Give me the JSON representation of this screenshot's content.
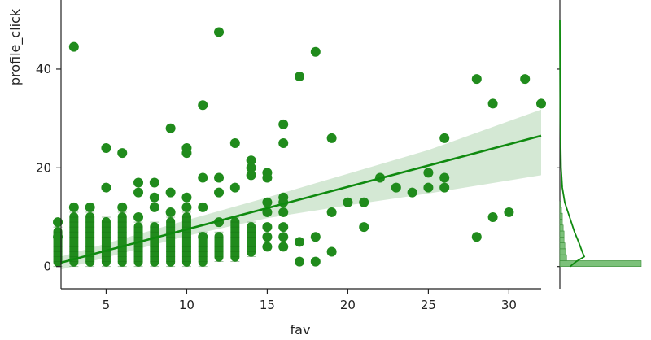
{
  "chart_data": {
    "type": "scatter",
    "xlabel": "fav",
    "ylabel": "profile_click",
    "xlim": [
      2.2,
      32.0
    ],
    "ylim": [
      -4.5,
      54.0
    ],
    "xticks": [
      5,
      10,
      15,
      20,
      25,
      30
    ],
    "yticks": [
      0,
      20,
      40
    ],
    "grid": false,
    "point_color": "#208b1c",
    "line_color": "#0f8a0f",
    "band_color": "#cfe5cf",
    "points": [
      [
        3,
        44.5
      ],
      [
        12,
        47.5
      ],
      [
        18,
        43.5
      ],
      [
        17,
        38.5
      ],
      [
        11,
        32.7
      ],
      [
        9,
        28
      ],
      [
        16,
        28.8
      ],
      [
        13,
        25
      ],
      [
        10,
        24
      ],
      [
        10,
        23
      ],
      [
        5,
        24
      ],
      [
        6,
        23
      ],
      [
        14,
        21.5
      ],
      [
        14,
        20
      ],
      [
        15,
        19
      ],
      [
        14,
        18.5
      ],
      [
        15,
        18
      ],
      [
        11,
        18
      ],
      [
        12,
        18
      ],
      [
        16,
        25
      ],
      [
        19,
        26
      ],
      [
        22,
        18
      ],
      [
        23,
        16
      ],
      [
        24,
        15
      ],
      [
        25,
        16
      ],
      [
        25,
        19
      ],
      [
        26,
        18
      ],
      [
        26,
        16
      ],
      [
        26,
        26
      ],
      [
        28,
        38
      ],
      [
        29,
        33
      ],
      [
        31,
        38
      ],
      [
        32,
        33
      ],
      [
        28,
        6
      ],
      [
        29,
        10
      ],
      [
        30,
        11
      ],
      [
        20,
        13
      ],
      [
        21,
        13
      ],
      [
        21,
        8
      ],
      [
        19,
        11
      ],
      [
        19,
        3
      ],
      [
        18,
        6
      ],
      [
        17,
        5
      ],
      [
        17,
        1
      ],
      [
        18,
        1
      ],
      [
        16,
        4
      ],
      [
        16,
        6
      ],
      [
        16,
        8
      ],
      [
        16,
        11
      ],
      [
        16,
        13
      ],
      [
        16,
        14
      ],
      [
        15,
        13
      ],
      [
        15,
        6
      ],
      [
        15,
        8
      ],
      [
        15,
        4
      ],
      [
        15,
        11
      ],
      [
        13,
        16
      ],
      [
        12,
        15
      ],
      [
        12,
        9
      ],
      [
        11,
        12
      ],
      [
        11,
        6
      ],
      [
        9,
        15
      ],
      [
        9,
        11
      ],
      [
        8,
        14
      ],
      [
        8,
        12
      ],
      [
        8,
        17
      ],
      [
        7,
        17
      ],
      [
        7,
        15
      ],
      [
        7,
        10
      ],
      [
        6,
        12
      ],
      [
        5,
        16
      ],
      [
        4,
        12
      ],
      [
        3,
        12
      ],
      [
        2,
        9
      ],
      [
        2,
        6
      ],
      [
        10,
        14
      ],
      [
        10,
        12
      ]
    ],
    "columns": [
      {
        "x": 2,
        "ymin": 0,
        "ymax": 8
      },
      {
        "x": 3,
        "ymin": 0,
        "ymax": 11
      },
      {
        "x": 4,
        "ymin": 0,
        "ymax": 11
      },
      {
        "x": 5,
        "ymin": 0,
        "ymax": 10
      },
      {
        "x": 6,
        "ymin": 0,
        "ymax": 11
      },
      {
        "x": 7,
        "ymin": 0,
        "ymax": 9
      },
      {
        "x": 8,
        "ymin": 0,
        "ymax": 9
      },
      {
        "x": 9,
        "ymin": 0,
        "ymax": 10
      },
      {
        "x": 10,
        "ymin": 0,
        "ymax": 11
      },
      {
        "x": 11,
        "ymin": 0,
        "ymax": 7
      },
      {
        "x": 12,
        "ymin": 1,
        "ymax": 7
      },
      {
        "x": 13,
        "ymin": 1,
        "ymax": 10
      },
      {
        "x": 14,
        "ymin": 2,
        "ymax": 9
      }
    ],
    "regression": {
      "x_start": 2.2,
      "x_end": 32.0,
      "y_start": 0.8,
      "y_end": 26.5
    },
    "ci_band": [
      {
        "x": 2.2,
        "lo": -0.6,
        "hi": 2.0
      },
      {
        "x": 10,
        "lo": 6.2,
        "hi": 9.4
      },
      {
        "x": 15,
        "lo": 9.8,
        "hi": 14.0
      },
      {
        "x": 20,
        "lo": 12.4,
        "hi": 18.8
      },
      {
        "x": 25,
        "lo": 14.8,
        "hi": 23.6
      },
      {
        "x": 32,
        "lo": 18.5,
        "hi": 31.8
      }
    ],
    "marginal_y_density": [
      [
        0,
        2.5
      ],
      [
        1,
        4.0
      ],
      [
        2,
        6.0
      ],
      [
        3,
        5.5
      ],
      [
        5,
        4.6
      ],
      [
        7,
        3.6
      ],
      [
        10,
        2.4
      ],
      [
        13,
        1.2
      ],
      [
        16,
        0.6
      ],
      [
        20,
        0.3
      ],
      [
        30,
        0.1
      ],
      [
        50,
        0.0
      ]
    ],
    "marginal_y_hist": [
      {
        "y0": 0,
        "y1": 1.2,
        "count": 97
      },
      {
        "y0": 1.2,
        "y1": 2.4,
        "count": 8
      },
      {
        "y0": 2.4,
        "y1": 3.6,
        "count": 7
      },
      {
        "y0": 3.6,
        "y1": 4.8,
        "count": 6
      },
      {
        "y0": 4.8,
        "y1": 6.0,
        "count": 5
      },
      {
        "y0": 6.0,
        "y1": 7.2,
        "count": 5
      },
      {
        "y0": 7.2,
        "y1": 8.4,
        "count": 4
      },
      {
        "y0": 8.4,
        "y1": 9.6,
        "count": 3
      },
      {
        "y0": 9.6,
        "y1": 10.8,
        "count": 3
      },
      {
        "y0": 10.8,
        "y1": 12.0,
        "count": 2
      },
      {
        "y0": 12.0,
        "y1": 13.2,
        "count": 1
      }
    ]
  }
}
